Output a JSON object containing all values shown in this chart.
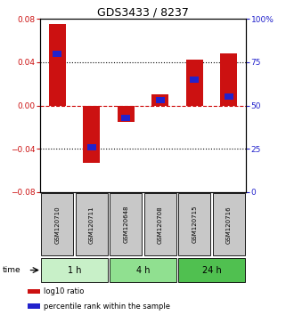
{
  "title": "GDS3433 / 8237",
  "samples": [
    "GSM120710",
    "GSM120711",
    "GSM120648",
    "GSM120708",
    "GSM120715",
    "GSM120716"
  ],
  "log10_ratio": [
    0.075,
    -0.053,
    -0.015,
    0.01,
    0.042,
    0.048
  ],
  "percentile_rank": [
    80,
    26,
    43,
    53,
    65,
    55
  ],
  "ylim_left": [
    -0.08,
    0.08
  ],
  "ylim_right": [
    0,
    100
  ],
  "yticks_left": [
    -0.08,
    -0.04,
    0,
    0.04,
    0.08
  ],
  "yticks_right": [
    0,
    25,
    50,
    75,
    100
  ],
  "ytick_labels_right": [
    "0",
    "25",
    "50",
    "75",
    "100%"
  ],
  "bar_color_red": "#cc1111",
  "bar_color_blue": "#2222cc",
  "dashed_zero_color": "#cc0000",
  "grid_color": "#000000",
  "time_groups": [
    {
      "label": "1 h",
      "start": 0,
      "end": 2,
      "color": "#c8f0c8"
    },
    {
      "label": "4 h",
      "start": 2,
      "end": 4,
      "color": "#90e090"
    },
    {
      "label": "24 h",
      "start": 4,
      "end": 6,
      "color": "#50c050"
    }
  ],
  "sample_box_color": "#c8c8c8",
  "legend_items": [
    {
      "label": "log10 ratio",
      "color": "#cc1111"
    },
    {
      "label": "percentile rank within the sample",
      "color": "#2222cc"
    }
  ],
  "bar_width": 0.5,
  "blue_bar_width": 0.25,
  "pct_bar_height": 3.5
}
